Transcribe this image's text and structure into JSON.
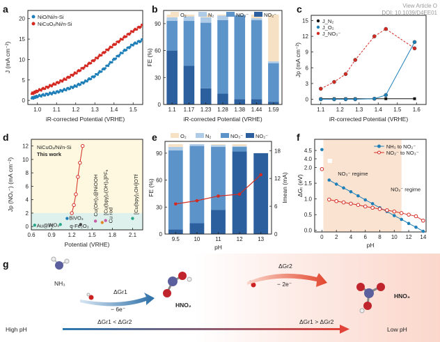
{
  "header": {
    "doi": "DOI: 10.1039/D4EE01",
    "view_article": "View Article O"
  },
  "colors": {
    "red": "#d42a22",
    "blue": "#1f7fb8",
    "lightblue": "#aecbe7",
    "midblue": "#5c93c9",
    "darkblue": "#2c5f9e",
    "beige": "#f7e1c4",
    "green": "#2aa88a"
  },
  "panels": {
    "a": {
      "label": "a",
      "legend": [
        "NiO/Ni/n-Si",
        "NiCuOₓ/Ni/n-Si"
      ],
      "xlabel": "iR-corrected Potential (VRHE)",
      "ylabel": "J (mA cm⁻²)",
      "xticks": [
        "1.0",
        "1.1",
        "1.2",
        "1.3",
        "1.4",
        "1.5"
      ],
      "yticks": [
        "0",
        "5",
        "10",
        "15",
        "20"
      ]
    },
    "b": {
      "label": "b",
      "legend": [
        "O₂",
        "N₂",
        "NO₃⁻",
        "NO₂⁻"
      ],
      "xlabel": "iR-corrected Potential (VRHE)",
      "ylabel": "FE (%)",
      "xticks": [
        "1.1",
        "1.17",
        "1.23",
        "1.28",
        "1.38",
        "1.44",
        "1.59"
      ],
      "yticks": [
        "0",
        "30",
        "60",
        "90"
      ]
    },
    "c": {
      "label": "c",
      "legend": [
        "J_N₂",
        "J_O₂",
        "J_NO₃⁻"
      ],
      "xlabel": "iR-corrected Potential (VRHE)",
      "ylabel": "Jp (mA cm⁻²)",
      "xticks": [
        "1.1",
        "1.2",
        "1.3",
        "1.4",
        "1.5",
        "1.6"
      ],
      "yticks": [
        "0",
        "3",
        "6",
        "9",
        "12",
        "15"
      ]
    },
    "d": {
      "label": "d",
      "series_label": "NiCuOₓ/Ni/n-Si",
      "this_work": "This work",
      "xlabel": "Potential (VRHE)",
      "ylabel": "Jp (NOₓ⁻) (mA cm⁻²)",
      "xticks": [
        "0.6",
        "0.9",
        "1.2",
        "1.5",
        "1.8",
        "2.1"
      ],
      "yticks": [
        "0",
        "2",
        "4",
        "6",
        "8",
        "10",
        "12"
      ],
      "annotations": [
        "Au@Pt",
        "WO₃",
        "BiVO₄",
        "α-Fe₂O₃",
        "Cu(OH)₂@NiOOH",
        "Cu rod",
        "[Cu(bpy)₂(OH)₂]PF₆",
        "[Cu(bpy)₂OH]OTf"
      ]
    },
    "e": {
      "label": "e",
      "legend": [
        "O₂",
        "N₂",
        "NO₃⁻",
        "NO₂⁻"
      ],
      "xlabel": "pH",
      "ylabel": "FE (%)",
      "ylabel2": "Imean (mA)",
      "xticks": [
        "9.5",
        "10",
        "11",
        "12",
        "13"
      ],
      "yticks": [
        "0",
        "30",
        "60",
        "90"
      ],
      "y2ticks": [
        "0",
        "6",
        "12",
        "18"
      ]
    },
    "f": {
      "label": "f",
      "legend": [
        "NH₃ to NO₂⁻",
        "NO₂⁻ to NO₃⁻"
      ],
      "regime1": "NO₃⁻ regime",
      "regime2": "NO₂⁻ regime",
      "xlabel": "pH",
      "ylabel": "ΔGᵣ (eV)",
      "xticks": [
        "0",
        "2",
        "4",
        "6",
        "8",
        "10",
        "12",
        "14"
      ],
      "yticks": [
        "0.0",
        "0.5",
        "1.0",
        "1.5",
        "2.0",
        "4.0",
        "4.5"
      ]
    },
    "g": {
      "label": "g",
      "nh3": "NH₃",
      "hno2": "HNO₂",
      "hno3": "HNO₃",
      "dg1": "ΔGr1",
      "dg2": "ΔGr2",
      "minus6e": "− 6e⁻",
      "minus2e": "− 2e⁻",
      "high_ph": "High pH",
      "low_ph": "Low pH",
      "cond_left": "ΔGr1 < ΔGr2",
      "cond_right": "ΔGr1 > ΔGr2"
    }
  },
  "chart_data": [
    {
      "type": "line",
      "panel": "a",
      "xlabel": "iR-corrected Potential (VRHE)",
      "ylabel": "J (mA cm⁻²)",
      "xlim": [
        0.95,
        1.55
      ],
      "ylim": [
        -1,
        22
      ],
      "series": [
        {
          "name": "NiO/Ni/n-Si",
          "x": [
            0.97,
            1.0,
            1.05,
            1.1,
            1.15,
            1.2,
            1.25,
            1.3,
            1.35,
            1.4,
            1.45,
            1.5,
            1.55
          ],
          "y": [
            0.5,
            1.0,
            1.5,
            2.0,
            2.7,
            3.5,
            4.6,
            6.0,
            7.8,
            10.0,
            12.0,
            13.7,
            14.8
          ]
        },
        {
          "name": "NiCuOₓ/Ni/n-Si",
          "x": [
            0.97,
            1.0,
            1.05,
            1.1,
            1.15,
            1.2,
            1.25,
            1.3,
            1.35,
            1.4,
            1.45,
            1.5,
            1.55
          ],
          "y": [
            1.6,
            2.3,
            3.2,
            4.2,
            5.3,
            6.7,
            8.3,
            10.0,
            11.8,
            13.6,
            15.3,
            17.0,
            18.4
          ]
        }
      ]
    },
    {
      "type": "bar",
      "panel": "b",
      "xlabel": "iR-corrected Potential (VRHE)",
      "ylabel": "FE (%)",
      "ylim": [
        0,
        100
      ],
      "categories": [
        "1.1",
        "1.17",
        "1.23",
        "1.28",
        "1.38",
        "1.44",
        "1.59"
      ],
      "series": [
        {
          "name": "NO₂⁻",
          "values": [
            60,
            43,
            18,
            12,
            6,
            6,
            3
          ]
        },
        {
          "name": "NO₃⁻",
          "values": [
            33,
            50,
            73,
            82,
            93,
            88,
            43
          ]
        },
        {
          "name": "N₂",
          "values": [
            4,
            5,
            6,
            5,
            1,
            2,
            2
          ]
        },
        {
          "name": "O₂",
          "values": [
            3,
            2,
            3,
            1,
            0,
            4,
            52
          ]
        }
      ]
    },
    {
      "type": "line",
      "panel": "c",
      "xlabel": "iR-corrected Potential (VRHE)",
      "ylabel": "Jp (mA cm⁻²)",
      "ylim": [
        -1,
        16
      ],
      "series": [
        {
          "name": "J_N₂",
          "x": [
            1.1,
            1.17,
            1.23,
            1.28,
            1.38,
            1.44,
            1.59
          ],
          "y": [
            0.1,
            0.1,
            0.1,
            0.1,
            0.1,
            0.1,
            0.1
          ]
        },
        {
          "name": "J_O₂",
          "x": [
            1.1,
            1.17,
            1.23,
            1.28,
            1.38,
            1.44,
            1.59
          ],
          "y": [
            0,
            0,
            0,
            0,
            0.1,
            0.8,
            10.9
          ]
        },
        {
          "name": "J_NO₃⁻",
          "x": [
            1.1,
            1.17,
            1.23,
            1.28,
            1.38,
            1.44,
            1.59
          ],
          "y": [
            2.0,
            3.3,
            4.8,
            7.5,
            12.0,
            13.4,
            9.7
          ]
        }
      ]
    },
    {
      "type": "scatter",
      "panel": "d",
      "xlabel": "Potential (VRHE)",
      "ylabel": "Jp (NOₓ⁻) (mA cm⁻²)",
      "xlim": [
        0.6,
        2.25
      ],
      "ylim": [
        -0.5,
        13
      ],
      "series": [
        {
          "name": "NiCuOₓ/Ni/n-Si",
          "x": [
            1.2,
            1.23,
            1.26,
            1.29,
            1.32,
            1.36
          ],
          "y": [
            2.0,
            3.2,
            4.8,
            7.4,
            9.5,
            12.0
          ]
        }
      ],
      "points": [
        {
          "label": "Au@Pt",
          "x": 0.65,
          "y": 0.2
        },
        {
          "label": "WO₃",
          "x": 1.03,
          "y": 0.3
        },
        {
          "label": "BiVO₄",
          "x": 1.13,
          "y": 1.2
        },
        {
          "label": "α-Fe₂O₃",
          "x": 1.33,
          "y": 0.3
        },
        {
          "label": "Cu(OH)₂@NiOOH",
          "x": 1.55,
          "y": 0.8
        },
        {
          "label": "Cu rod",
          "x": 1.65,
          "y": 0.6
        },
        {
          "label": "[Cu(bpy)₂(OH)₂]PF₆",
          "x": 1.7,
          "y": 0.9
        },
        {
          "label": "[Cu(bpy)₂OH]OTf",
          "x": 2.1,
          "y": 1.2
        }
      ]
    },
    {
      "type": "bar",
      "panel": "e",
      "xlabel": "pH",
      "ylabel": "FE (%)",
      "ylim": [
        0,
        100
      ],
      "categories": [
        "9.5",
        "10",
        "11",
        "12",
        "13"
      ],
      "series": [
        {
          "name": "NO₂⁻",
          "values": [
            5,
            12,
            27,
            92,
            90
          ]
        },
        {
          "name": "NO₃⁻",
          "values": [
            88,
            86,
            70,
            5,
            0
          ]
        },
        {
          "name": "N₂",
          "values": [
            4,
            2,
            2,
            1,
            0
          ]
        },
        {
          "name": "O₂",
          "values": [
            3,
            0,
            1,
            2,
            0
          ]
        }
      ],
      "line": {
        "name": "Imean (mA)",
        "ylim": [
          0,
          20
        ],
        "values": [
          6.5,
          7.2,
          8.2,
          8.6,
          12.8
        ]
      }
    },
    {
      "type": "line",
      "panel": "f",
      "xlabel": "pH",
      "ylabel": "ΔGᵣ (eV)",
      "series": [
        {
          "name": "NH₃ to NO₂⁻",
          "x": [
            0,
            1,
            2,
            3,
            4,
            5,
            6,
            7,
            8,
            9,
            10,
            11,
            12,
            13,
            14
          ],
          "y": [
            4.55,
            1.6,
            1.47,
            1.35,
            1.23,
            1.1,
            0.97,
            0.85,
            0.72,
            0.6,
            0.47,
            0.35,
            0.22,
            0.1,
            -0.03
          ]
        },
        {
          "name": "NO₂⁻ to NO₃⁻",
          "x": [
            0,
            1,
            2,
            3,
            4,
            5,
            6,
            7,
            8,
            9,
            10,
            11,
            12,
            13,
            14
          ],
          "y": [
            1.95,
            0.98,
            0.93,
            0.89,
            0.85,
            0.81,
            0.76,
            0.72,
            0.68,
            0.64,
            0.6,
            0.55,
            0.5,
            0.45,
            0.31
          ]
        }
      ]
    }
  ]
}
